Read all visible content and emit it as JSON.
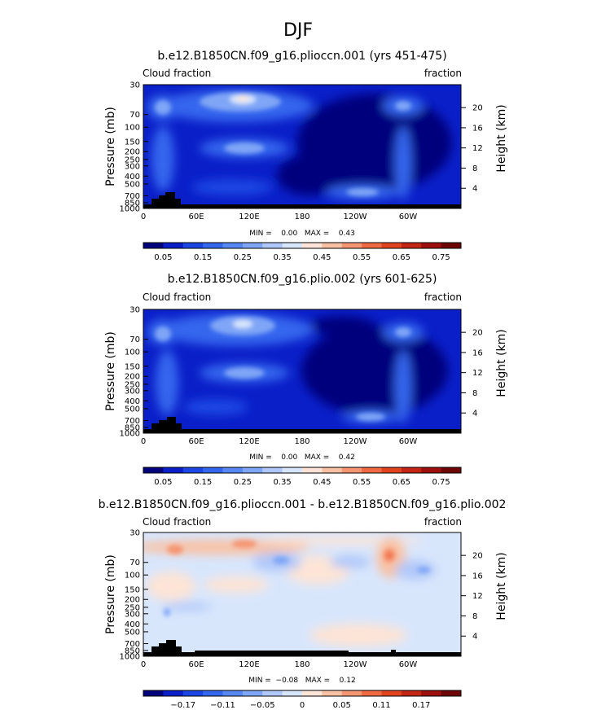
{
  "page_title": "DJF",
  "chart_data": [
    {
      "type": "contour",
      "title": "b.e12.B1850CN.f09_g16.plioccn.001 (yrs 451-475)",
      "left_label": "Cloud fraction",
      "right_label": "fraction",
      "xlabel": "",
      "ylabel": "Pressure (mb)",
      "y2label": "Height (km)",
      "xlim": [
        0,
        360
      ],
      "x_ticks": [
        "0",
        "60E",
        "120E",
        "180",
        "120W",
        "60W"
      ],
      "y_ticks": [
        "30",
        "70",
        "100",
        "150",
        "200",
        "250",
        "300",
        "400",
        "500",
        "700",
        "850",
        "1000"
      ],
      "y2_ticks": [
        "20",
        "16",
        "12",
        "8",
        "4"
      ],
      "stats": "MIN =    0.00   MAX =    0.43",
      "colorbar_labels": [
        "0.05",
        "0.15",
        "0.25",
        "0.35",
        "0.45",
        "0.55",
        "0.65",
        "0.75"
      ],
      "colorbar_colors": [
        "#03047d",
        "#0a1fc8",
        "#1c46e4",
        "#3566ee",
        "#5687f2",
        "#7fa6f6",
        "#b0c8f9",
        "#d8e6fc",
        "#fde4d6",
        "#f9c1a3",
        "#f59673",
        "#ef6a43",
        "#e2431f",
        "#c22513",
        "#9c0f0c",
        "#6e0507"
      ],
      "range": [
        0.0,
        0.43
      ]
    },
    {
      "type": "contour",
      "title": "b.e12.B1850CN.f09_g16.plio.002 (yrs 601-625)",
      "left_label": "Cloud fraction",
      "right_label": "fraction",
      "xlabel": "",
      "ylabel": "Pressure (mb)",
      "y2label": "Height (km)",
      "xlim": [
        0,
        360
      ],
      "x_ticks": [
        "0",
        "60E",
        "120E",
        "180",
        "120W",
        "60W"
      ],
      "y_ticks": [
        "30",
        "70",
        "100",
        "150",
        "200",
        "250",
        "300",
        "400",
        "500",
        "700",
        "850",
        "1000"
      ],
      "y2_ticks": [
        "20",
        "16",
        "12",
        "8",
        "4"
      ],
      "stats": "MIN =    0.00   MAX =    0.42",
      "colorbar_labels": [
        "0.05",
        "0.15",
        "0.25",
        "0.35",
        "0.45",
        "0.55",
        "0.65",
        "0.75"
      ],
      "colorbar_colors": [
        "#03047d",
        "#0a1fc8",
        "#1c46e4",
        "#3566ee",
        "#5687f2",
        "#7fa6f6",
        "#b0c8f9",
        "#d8e6fc",
        "#fde4d6",
        "#f9c1a3",
        "#f59673",
        "#ef6a43",
        "#e2431f",
        "#c22513",
        "#9c0f0c",
        "#6e0507"
      ],
      "range": [
        0.0,
        0.42
      ]
    },
    {
      "type": "contour",
      "title": "b.e12.B1850CN.f09_g16.plioccn.001 - b.e12.B1850CN.f09_g16.plio.002",
      "left_label": "Cloud fraction",
      "right_label": "fraction",
      "xlabel": "",
      "ylabel": "Pressure (mb)",
      "y2label": "Height (km)",
      "xlim": [
        0,
        360
      ],
      "x_ticks": [
        "0",
        "60E",
        "120E",
        "180",
        "120W",
        "60W"
      ],
      "y_ticks": [
        "30",
        "70",
        "100",
        "150",
        "200",
        "250",
        "300",
        "400",
        "500",
        "700",
        "850",
        "1000"
      ],
      "y2_ticks": [
        "20",
        "16",
        "12",
        "8",
        "4"
      ],
      "stats": "MIN =  −0.08   MAX =    0.12",
      "colorbar_labels": [
        "−0.17",
        "−0.11",
        "−0.05",
        "0",
        "0.05",
        "0.11",
        "0.17"
      ],
      "colorbar_colors": [
        "#03047d",
        "#0a1fc8",
        "#1c46e4",
        "#3566ee",
        "#5687f2",
        "#7fa6f6",
        "#b0c8f9",
        "#d8e6fc",
        "#fde4d6",
        "#f9c1a3",
        "#f59673",
        "#ef6a43",
        "#e2431f",
        "#c22513",
        "#9c0f0c",
        "#6e0507"
      ],
      "range": [
        -0.08,
        0.12
      ]
    }
  ]
}
